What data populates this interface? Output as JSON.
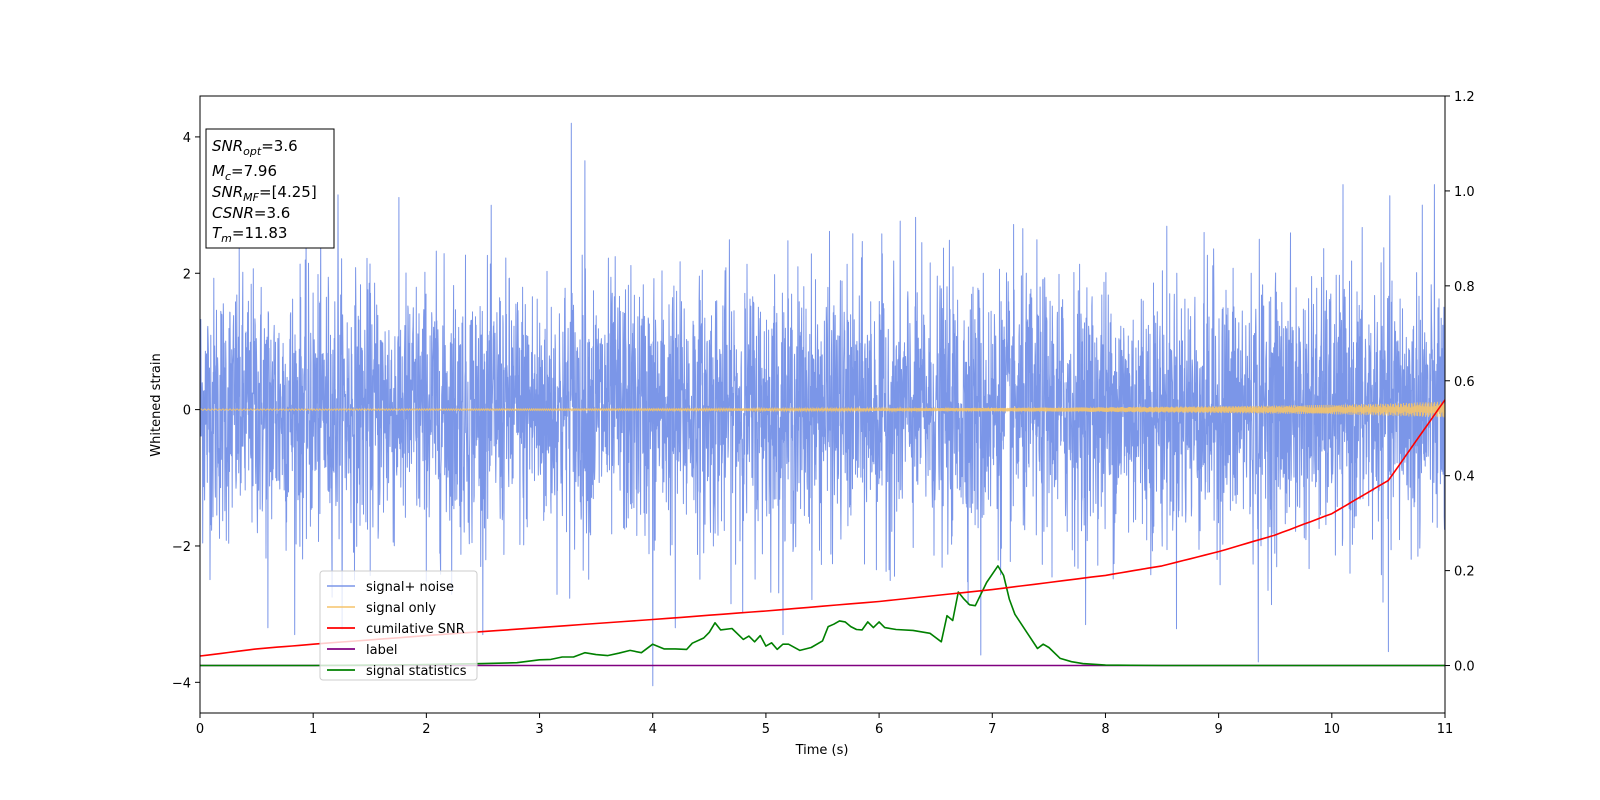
{
  "chart_data": {
    "type": "line",
    "xlabel": "Time (s)",
    "ylabel_left": "Whitened strain",
    "ylabel_right": "",
    "xlim": [
      0,
      11
    ],
    "ylim_left": [
      -4.45,
      4.6
    ],
    "ylim_right": [
      -0.1,
      1.2
    ],
    "x_ticks": [
      "0",
      "1",
      "2",
      "3",
      "4",
      "5",
      "6",
      "7",
      "8",
      "9",
      "10",
      "11"
    ],
    "y_ticks_left": [
      "−4",
      "−2",
      "0",
      "2",
      "4"
    ],
    "y_ticks_right": [
      "0.0",
      "0.2",
      "0.4",
      "0.6",
      "0.8",
      "1.0",
      "1.2"
    ],
    "grid": false,
    "legend_position": "lower-left",
    "annotation_lines": [
      {
        "var": "SNR",
        "sub": "opt",
        "value": "=3.6"
      },
      {
        "var": "M",
        "sub": "c",
        "value": "=7.96"
      },
      {
        "var": "SNR",
        "sub": "MF",
        "value": "=[4.25]"
      },
      {
        "var": "CSNR",
        "sub": "",
        "value": "=3.6"
      },
      {
        "var": "T",
        "sub": "m",
        "value": "=11.83"
      }
    ],
    "series": [
      {
        "name": "signal+ noise",
        "axis": "left",
        "color": "#7b96e8",
        "style": "whitened noise, roughly N(0,1)",
        "envelope_typical": [
          -1.8,
          2.0
        ],
        "peaks": [
          {
            "x": 3.28,
            "y": 4.2
          },
          {
            "x": 3.4,
            "y": 3.65
          },
          {
            "x": 1.22,
            "y": 3.15
          },
          {
            "x": 10.8,
            "y": 3.0
          },
          {
            "x": 4.0,
            "y": -4.05
          },
          {
            "x": 9.35,
            "y": -3.7
          },
          {
            "x": 10.5,
            "y": -3.55
          },
          {
            "x": 6.9,
            "y": -3.6
          },
          {
            "x": 0.6,
            "y": -3.2
          },
          {
            "x": 4.2,
            "y": -3.2
          }
        ]
      },
      {
        "name": "signal only",
        "axis": "left",
        "color": "#f5c46a",
        "x": [
          0,
          2,
          4,
          6,
          7,
          8,
          9,
          10,
          10.5,
          11
        ],
        "amplitude": [
          0.01,
          0.012,
          0.015,
          0.02,
          0.025,
          0.035,
          0.05,
          0.07,
          0.09,
          0.12
        ]
      },
      {
        "name": "cumilative SNR",
        "axis": "right",
        "color": "#ff0000",
        "x": [
          0,
          0.5,
          1,
          2,
          3,
          4,
          5,
          6,
          7,
          8,
          8.5,
          9,
          9.5,
          10,
          10.5,
          11
        ],
        "y": [
          0.02,
          0.035,
          0.045,
          0.063,
          0.08,
          0.097,
          0.115,
          0.135,
          0.16,
          0.19,
          0.21,
          0.24,
          0.275,
          0.32,
          0.39,
          0.56
        ]
      },
      {
        "name": "label",
        "axis": "right",
        "color": "#800080",
        "x": [
          0,
          11
        ],
        "y": [
          0.0,
          0.0
        ]
      },
      {
        "name": "signal statistics",
        "axis": "right",
        "color": "#008000",
        "x": [
          0,
          0.5,
          1,
          1.5,
          2,
          2.5,
          2.8,
          3,
          3.1,
          3.2,
          3.3,
          3.4,
          3.5,
          3.6,
          3.7,
          3.8,
          3.9,
          4.0,
          4.1,
          4.2,
          4.3,
          4.35,
          4.45,
          4.5,
          4.55,
          4.6,
          4.7,
          4.8,
          4.85,
          4.9,
          4.95,
          5.0,
          5.05,
          5.1,
          5.15,
          5.2,
          5.3,
          5.4,
          5.5,
          5.55,
          5.6,
          5.65,
          5.7,
          5.75,
          5.8,
          5.85,
          5.9,
          5.95,
          6.0,
          6.05,
          6.15,
          6.3,
          6.45,
          6.55,
          6.6,
          6.65,
          6.7,
          6.75,
          6.8,
          6.85,
          6.95,
          7.05,
          7.1,
          7.15,
          7.2,
          7.3,
          7.4,
          7.45,
          7.5,
          7.6,
          7.7,
          7.8,
          8.0,
          8.5,
          9,
          10,
          11
        ],
        "y": [
          0.0,
          0.0,
          0.0,
          0.001,
          0.002,
          0.004,
          0.006,
          0.012,
          0.013,
          0.018,
          0.018,
          0.027,
          0.023,
          0.021,
          0.026,
          0.032,
          0.027,
          0.045,
          0.035,
          0.035,
          0.034,
          0.047,
          0.058,
          0.07,
          0.09,
          0.075,
          0.078,
          0.055,
          0.062,
          0.05,
          0.063,
          0.041,
          0.048,
          0.034,
          0.045,
          0.045,
          0.032,
          0.038,
          0.052,
          0.082,
          0.087,
          0.094,
          0.092,
          0.082,
          0.076,
          0.075,
          0.092,
          0.08,
          0.092,
          0.08,
          0.076,
          0.074,
          0.068,
          0.05,
          0.105,
          0.095,
          0.155,
          0.14,
          0.128,
          0.126,
          0.175,
          0.21,
          0.19,
          0.14,
          0.108,
          0.072,
          0.036,
          0.045,
          0.038,
          0.015,
          0.008,
          0.004,
          0.001,
          0.0,
          0.0,
          0.0,
          0.0
        ]
      }
    ]
  }
}
